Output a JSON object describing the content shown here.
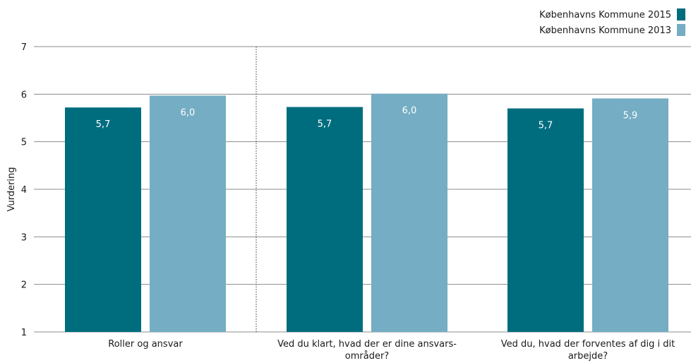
{
  "chart_data": {
    "type": "bar",
    "ylabel": "Vurdering",
    "ylim": [
      1,
      7
    ],
    "yticks": [
      "1",
      "2",
      "3",
      "4",
      "5",
      "6",
      "7"
    ],
    "grid": true,
    "legend_position": "top-right",
    "categories": [
      [
        "Roller og ansvar"
      ],
      [
        "Ved du klart, hvad der er dine ansvars-",
        "områder?"
      ],
      [
        "Ved du, hvad der forventes af dig i dit",
        "arbejde?"
      ]
    ],
    "series": [
      {
        "name": "Københavns Kommune 2015",
        "color": "#006d7e",
        "values": [
          5.72,
          5.73,
          5.7
        ],
        "labels": [
          "5,7",
          "5,7",
          "5,7"
        ]
      },
      {
        "name": "Københavns Kommune 2013",
        "color": "#74adc4",
        "values": [
          5.97,
          6.01,
          5.91
        ],
        "labels": [
          "6,0",
          "6,0",
          "5,9"
        ]
      }
    ]
  }
}
